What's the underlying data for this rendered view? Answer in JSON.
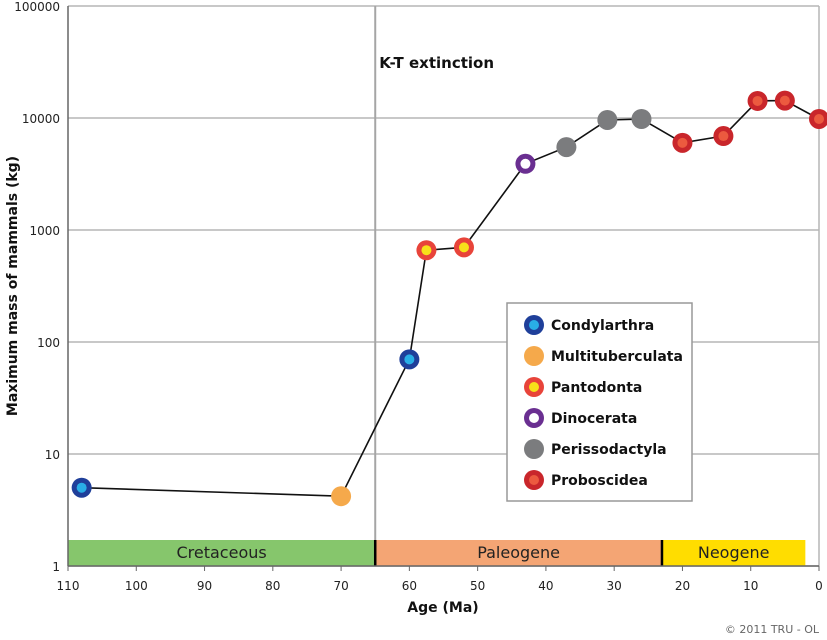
{
  "chart_data": {
    "type": "line",
    "xlabel": "Age (Ma)",
    "ylabel": "Maximum mass of mammals (kg)",
    "x_reversed": true,
    "xlim": [
      110,
      0
    ],
    "ylim": [
      1,
      100000
    ],
    "y_scale": "log",
    "x_ticks": [
      110,
      100,
      90,
      80,
      70,
      60,
      50,
      40,
      30,
      20,
      10,
      0
    ],
    "y_ticks": [
      1,
      10,
      100,
      1000,
      10000,
      100000
    ],
    "y_tick_labels": [
      "1",
      "10",
      "100",
      "1000",
      "10000",
      "100000"
    ],
    "grid": true,
    "points": [
      {
        "x": 108,
        "y": 5,
        "group": "Condylarthra"
      },
      {
        "x": 70,
        "y": 4.2,
        "group": "Multituberculata"
      },
      {
        "x": 60,
        "y": 70,
        "group": "Condylarthra"
      },
      {
        "x": 57.5,
        "y": 660,
        "group": "Pantodonta"
      },
      {
        "x": 52,
        "y": 700,
        "group": "Pantodonta"
      },
      {
        "x": 43,
        "y": 3900,
        "group": "Dinocerata"
      },
      {
        "x": 37,
        "y": 5500,
        "group": "Perissodactyla"
      },
      {
        "x": 31,
        "y": 9600,
        "group": "Perissodactyla"
      },
      {
        "x": 26,
        "y": 9800,
        "group": "Perissodactyla"
      },
      {
        "x": 20,
        "y": 6000,
        "group": "Proboscidea"
      },
      {
        "x": 14,
        "y": 6900,
        "group": "Proboscidea"
      },
      {
        "x": 9,
        "y": 14200,
        "group": "Proboscidea"
      },
      {
        "x": 5,
        "y": 14300,
        "group": "Proboscidea"
      },
      {
        "x": 0,
        "y": 9800,
        "group": "Proboscidea"
      }
    ],
    "groups": [
      {
        "name": "Condylarthra",
        "style": "ring",
        "outer": "#1f3f9a",
        "inner": "#29aee6"
      },
      {
        "name": "Multituberculata",
        "style": "solid",
        "outer": "#f5a94b",
        "inner": "#f5a94b"
      },
      {
        "name": "Pantodonta",
        "style": "ring",
        "outer": "#e8443a",
        "inner": "#f7e21a"
      },
      {
        "name": "Dinocerata",
        "style": "ring",
        "outer": "#6a2f91",
        "inner": "#ffffff"
      },
      {
        "name": "Perissodactyla",
        "style": "solid",
        "outer": "#7b7c7e",
        "inner": "#7b7c7e"
      },
      {
        "name": "Proboscidea",
        "style": "ring",
        "outer": "#c9262b",
        "inner": "#ec5a3f"
      }
    ],
    "legend_position": "center-right",
    "annotations": [
      {
        "text": "K-T extinction",
        "x": 65
      }
    ],
    "periods": [
      {
        "name": "Cretaceous",
        "from": 110,
        "to": 65,
        "color": "#86c66c"
      },
      {
        "name": "Paleogene",
        "from": 65,
        "to": 23,
        "color": "#f4a574"
      },
      {
        "name": "Neogene",
        "from": 23,
        "to": 2,
        "color": "#ffdd00"
      }
    ],
    "period_boundaries": [
      65,
      23
    ]
  },
  "footer": {
    "copyright": "© 2011 TRU - OL"
  }
}
